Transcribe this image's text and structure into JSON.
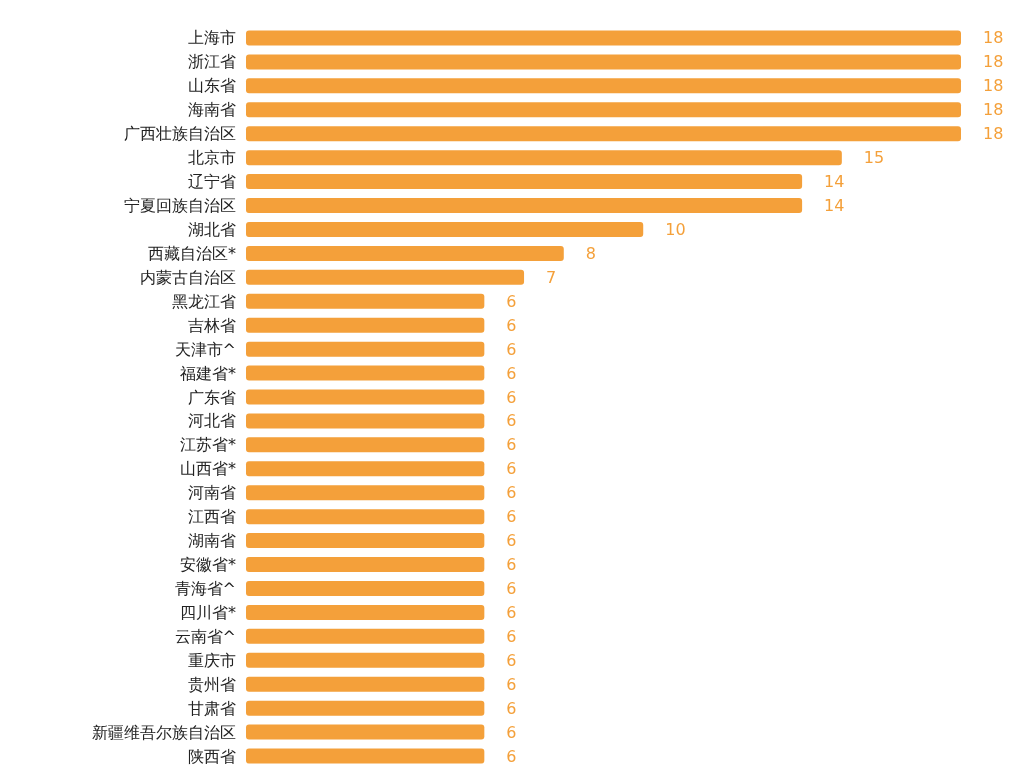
{
  "chart_data": {
    "type": "bar",
    "orientation": "horizontal",
    "categories": [
      "上海市",
      "浙江省",
      "山东省",
      "海南省",
      "广西壮族自治区",
      "北京市",
      "辽宁省",
      "宁夏回族自治区",
      "湖北省",
      "西藏自治区*",
      "内蒙古自治区",
      "黑龙江省",
      "吉林省",
      "天津市^",
      "福建省*",
      "广东省",
      "河北省",
      "江苏省*",
      "山西省*",
      "河南省",
      "江西省",
      "湖南省",
      "安徽省*",
      "青海省^",
      "四川省*",
      "云南省^",
      "重庆市",
      "贵州省",
      "甘肃省",
      "新疆维吾尔族自治区",
      "陕西省"
    ],
    "values": [
      18,
      18,
      18,
      18,
      18,
      15,
      14,
      14,
      10,
      8,
      7,
      6,
      6,
      6,
      6,
      6,
      6,
      6,
      6,
      6,
      6,
      6,
      6,
      6,
      6,
      6,
      6,
      6,
      6,
      6,
      6
    ],
    "color": "#f4a03a",
    "data_labels": true,
    "tick_labels": "y"
  }
}
